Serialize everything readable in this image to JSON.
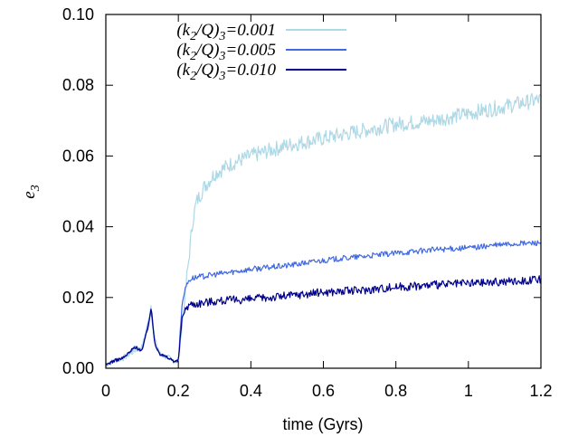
{
  "chart_data": {
    "type": "line",
    "xlabel": "time (Gyrs)",
    "ylabel": {
      "main": "e",
      "sub": "3"
    },
    "xlim": [
      0,
      1.2
    ],
    "ylim": [
      0,
      0.1
    ],
    "xticks": [
      "0",
      "0.2",
      "0.4",
      "0.6",
      "0.8",
      "1",
      "1.2"
    ],
    "yticks": [
      "0.00",
      "0.02",
      "0.04",
      "0.06",
      "0.08",
      "0.10"
    ],
    "legend_position": "top-left",
    "grid": false,
    "series": [
      {
        "legend": {
          "a": "(k",
          "b": "2",
          "c": "/Q)",
          "d": "3",
          "e": "=0.001"
        },
        "color": "#add8e6",
        "amplitude": 0.0022,
        "x": [
          0,
          0.02,
          0.05,
          0.08,
          0.1,
          0.115,
          0.125,
          0.135,
          0.15,
          0.17,
          0.19,
          0.2,
          0.21,
          0.22,
          0.23,
          0.24,
          0.25,
          0.27,
          0.3,
          0.35,
          0.4,
          0.5,
          0.6,
          0.7,
          0.8,
          0.9,
          1.0,
          1.1,
          1.2
        ],
        "y": [
          0.001,
          0.002,
          0.003,
          0.005,
          0.006,
          0.012,
          0.018,
          0.008,
          0.004,
          0.003,
          0.002,
          0.002,
          0.012,
          0.022,
          0.032,
          0.042,
          0.047,
          0.051,
          0.055,
          0.058,
          0.06,
          0.063,
          0.065,
          0.067,
          0.069,
          0.07,
          0.072,
          0.074,
          0.076
        ]
      },
      {
        "legend": {
          "a": "(k",
          "b": "2",
          "c": "/Q)",
          "d": "3",
          "e": "=0.005"
        },
        "color": "#4169e1",
        "amplitude": 0.0008,
        "x": [
          0,
          0.02,
          0.05,
          0.08,
          0.1,
          0.115,
          0.125,
          0.135,
          0.15,
          0.17,
          0.19,
          0.2,
          0.21,
          0.22,
          0.23,
          0.24,
          0.3,
          0.4,
          0.5,
          0.6,
          0.7,
          0.8,
          0.9,
          1.0,
          1.1,
          1.2
        ],
        "y": [
          0.001,
          0.002,
          0.003,
          0.006,
          0.005,
          0.012,
          0.016,
          0.007,
          0.004,
          0.003,
          0.002,
          0.002,
          0.018,
          0.023,
          0.025,
          0.0255,
          0.0265,
          0.028,
          0.029,
          0.0305,
          0.0315,
          0.0325,
          0.0335,
          0.034,
          0.035,
          0.0355
        ]
      },
      {
        "legend": {
          "a": "(k",
          "b": "2",
          "c": "/Q)",
          "d": "3",
          "e": "=0.010"
        },
        "color": "#00008b",
        "amplitude": 0.0012,
        "x": [
          0,
          0.02,
          0.05,
          0.08,
          0.1,
          0.115,
          0.125,
          0.135,
          0.15,
          0.17,
          0.19,
          0.2,
          0.21,
          0.22,
          0.23,
          0.3,
          0.4,
          0.5,
          0.6,
          0.7,
          0.8,
          0.9,
          1.0,
          1.1,
          1.2
        ],
        "y": [
          0.001,
          0.002,
          0.003,
          0.006,
          0.005,
          0.011,
          0.017,
          0.007,
          0.004,
          0.003,
          0.002,
          0.002,
          0.014,
          0.017,
          0.018,
          0.019,
          0.0195,
          0.0205,
          0.0215,
          0.022,
          0.023,
          0.0235,
          0.024,
          0.0245,
          0.025
        ]
      }
    ]
  }
}
